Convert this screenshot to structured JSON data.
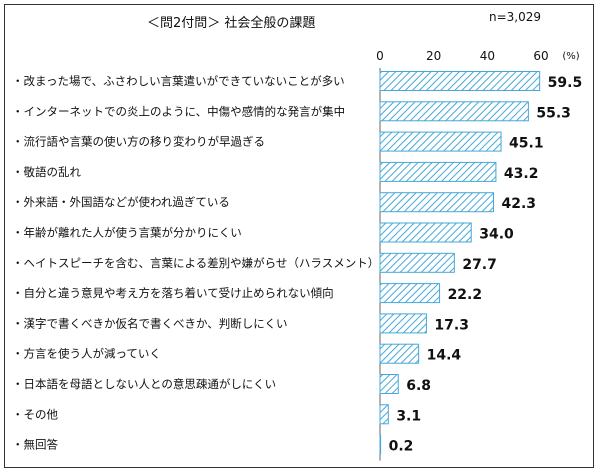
{
  "header": {
    "title": "＜問2付問＞ 社会全般の課題",
    "n": "n=3,029"
  },
  "chart_data": {
    "type": "bar",
    "orientation": "horizontal",
    "title": "＜問2付問＞ 社会全般の課題",
    "unit": "(%)",
    "xlim": [
      0,
      60
    ],
    "xticks": [
      "0",
      "20",
      "40",
      "60"
    ],
    "categories": [
      "・改まった場で、ふさわしい言葉遣いができていないことが多い",
      "・インターネットでの炎上のように、中傷や感情的な発言が集中",
      "・流行語や言葉の使い方の移り変わりが早過ぎる",
      "・敬語の乱れ",
      "・外来語・外国語などが使われ過ぎている",
      "・年齢が離れた人が使う言葉が分かりにくい",
      "・ヘイトスピーチを含む、言葉による差別や嫌がらせ（ハラスメント）",
      "・自分と違う意見や考え方を落ち着いて受け止められない傾向",
      "・漢字で書くべきか仮名で書くべきか、判断しにくい",
      "・方言を使う人が減っていく",
      "・日本語を母語としない人との意思疎通がしにくい",
      "・その他",
      "・無回答"
    ],
    "values": [
      59.5,
      55.3,
      45.1,
      43.2,
      42.3,
      34.0,
      27.7,
      22.2,
      17.3,
      14.4,
      6.8,
      3.1,
      0.2
    ],
    "value_labels": [
      "59.5",
      "55.3",
      "45.1",
      "43.2",
      "42.3",
      "34.0",
      "27.7",
      "22.2",
      "17.3",
      "14.4",
      "6.8",
      "3.1",
      "0.2"
    ],
    "bar_fill": "#ffffff",
    "bar_stroke": "#45a8d8",
    "hatch_color": "#45a8d8"
  }
}
